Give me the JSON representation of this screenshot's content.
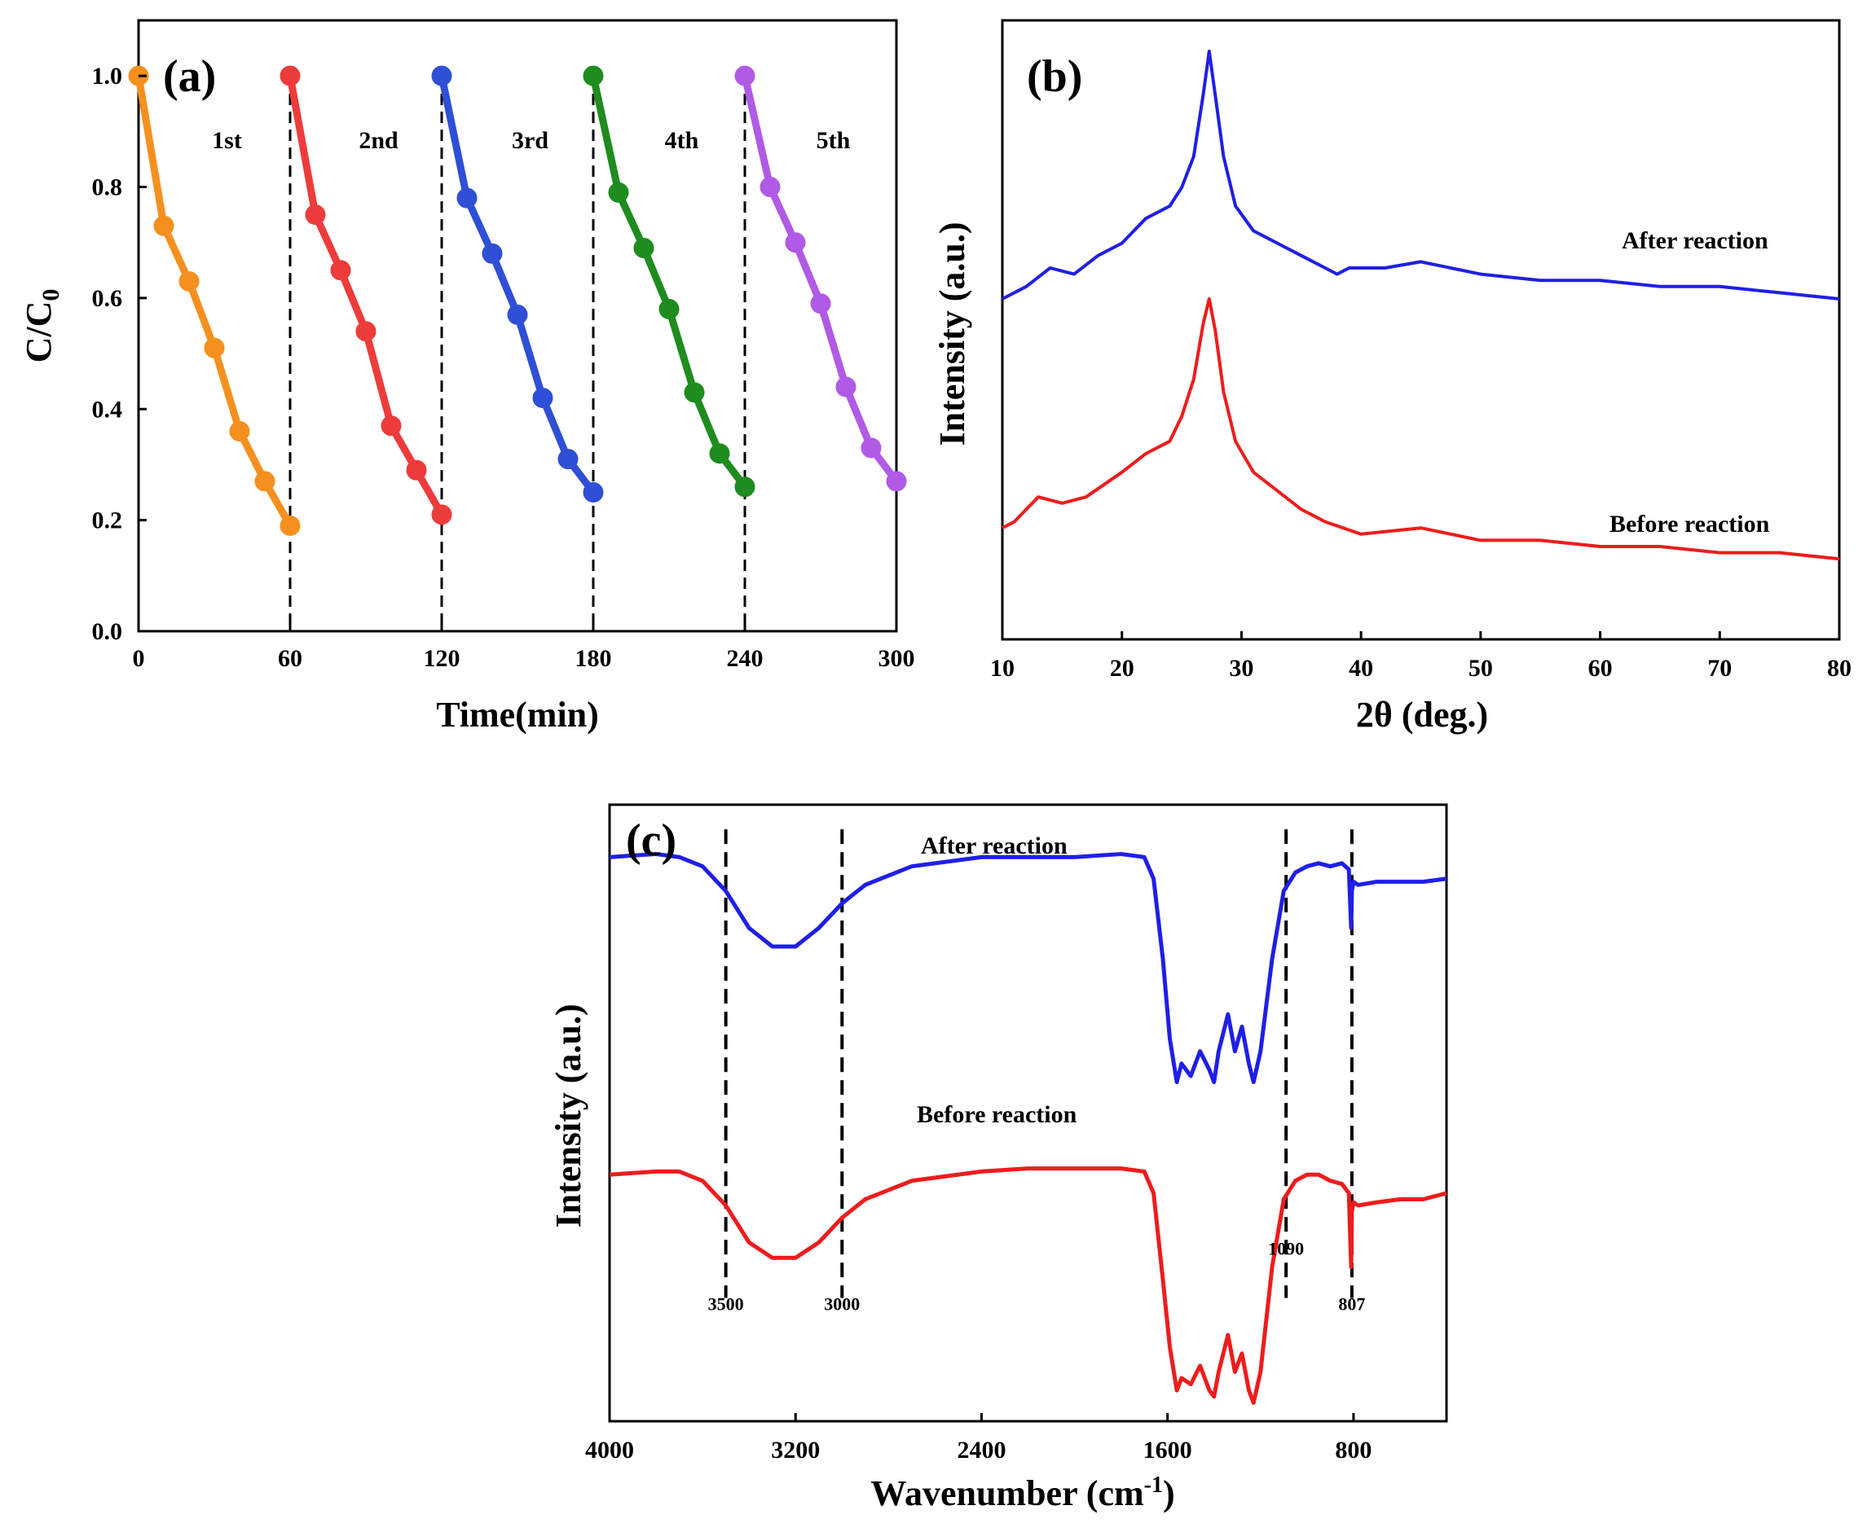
{
  "chart_data": [
    {
      "type": "line",
      "panel": "(a)",
      "xlabel": "Time(min)",
      "ylabel": "C/C",
      "ylabel_subscript": "0",
      "xlim": [
        0,
        300
      ],
      "ylim": [
        0.0,
        1.1
      ],
      "xticks": [
        "0",
        "60",
        "120",
        "180",
        "240",
        "300"
      ],
      "yticks": [
        "0.0",
        "0.2",
        "0.4",
        "0.6",
        "0.8",
        "1.0"
      ],
      "vlines": [
        60,
        120,
        180,
        240
      ],
      "series": [
        {
          "name": "1st",
          "color": "#f5901e",
          "x": [
            0,
            10,
            20,
            30,
            40,
            50,
            60
          ],
          "y": [
            1.0,
            0.73,
            0.63,
            0.51,
            0.36,
            0.27,
            0.19
          ]
        },
        {
          "name": "2nd",
          "color": "#ee3b3b",
          "x": [
            60,
            70,
            80,
            90,
            100,
            110,
            120
          ],
          "y": [
            1.0,
            0.75,
            0.65,
            0.54,
            0.37,
            0.29,
            0.21
          ]
        },
        {
          "name": "3rd",
          "color": "#2e4fd6",
          "x": [
            120,
            130,
            140,
            150,
            160,
            170,
            180
          ],
          "y": [
            1.0,
            0.78,
            0.68,
            0.57,
            0.42,
            0.31,
            0.25
          ]
        },
        {
          "name": "4th",
          "color": "#1e8c1e",
          "x": [
            180,
            190,
            200,
            210,
            220,
            230,
            240
          ],
          "y": [
            1.0,
            0.79,
            0.69,
            0.58,
            0.43,
            0.32,
            0.26
          ]
        },
        {
          "name": "5th",
          "color": "#b05ae6",
          "x": [
            240,
            250,
            260,
            270,
            280,
            290,
            300
          ],
          "y": [
            1.0,
            0.8,
            0.7,
            0.59,
            0.44,
            0.33,
            0.27
          ]
        }
      ]
    },
    {
      "type": "line",
      "panel": "(b)",
      "xlabel": "2θ (deg.)",
      "ylabel": "Intensity (a.u.)",
      "xlim": [
        10,
        80
      ],
      "ylim": [
        0,
        1
      ],
      "xticks": [
        "10",
        "20",
        "30",
        "40",
        "50",
        "60",
        "70",
        "80"
      ],
      "series": [
        {
          "name": "After reaction",
          "color": "#1f1fe6",
          "x": [
            10,
            12,
            14,
            16,
            18,
            20,
            22,
            24,
            25,
            26,
            26.8,
            27.3,
            27.8,
            28.5,
            29.5,
            31,
            33,
            35,
            37,
            38,
            39,
            42,
            45,
            50,
            55,
            60,
            65,
            70,
            75,
            80
          ],
          "y": [
            0.55,
            0.57,
            0.6,
            0.59,
            0.62,
            0.64,
            0.68,
            0.7,
            0.73,
            0.78,
            0.88,
            0.95,
            0.88,
            0.78,
            0.7,
            0.66,
            0.64,
            0.62,
            0.6,
            0.59,
            0.6,
            0.6,
            0.61,
            0.59,
            0.58,
            0.58,
            0.57,
            0.57,
            0.56,
            0.55
          ]
        },
        {
          "name": "Before reaction",
          "color": "#ee1c1c",
          "x": [
            10,
            11,
            12,
            13,
            15,
            17,
            20,
            22,
            24,
            25,
            26,
            26.8,
            27.3,
            27.8,
            28.5,
            29.5,
            31,
            33,
            35,
            37,
            40,
            45,
            50,
            55,
            60,
            65,
            70,
            75,
            80
          ],
          "y": [
            0.18,
            0.19,
            0.21,
            0.23,
            0.22,
            0.23,
            0.27,
            0.3,
            0.32,
            0.36,
            0.42,
            0.51,
            0.55,
            0.5,
            0.4,
            0.32,
            0.27,
            0.24,
            0.21,
            0.19,
            0.17,
            0.18,
            0.16,
            0.16,
            0.15,
            0.15,
            0.14,
            0.14,
            0.13
          ]
        }
      ],
      "annotations": [
        "After reaction",
        "Before reaction"
      ]
    },
    {
      "type": "line",
      "panel": "(c)",
      "xlabel": "Wavenumber (cm",
      "xlabel_superscript": "-1",
      "xlabel_suffix": ")",
      "ylabel": "Intensity (a.u.)",
      "xlim": [
        4000,
        400
      ],
      "ylim": [
        0,
        1
      ],
      "xticks": [
        "4000",
        "3200",
        "2400",
        "1600",
        "800"
      ],
      "vlines": [
        {
          "x": 3500,
          "label": "3500"
        },
        {
          "x": 3000,
          "label": "3000"
        },
        {
          "x": 1090,
          "label": "1090"
        },
        {
          "x": 807,
          "label": "807"
        }
      ],
      "series": [
        {
          "name": "After reaction",
          "color": "#1f1fe6",
          "x": [
            4000,
            3800,
            3700,
            3600,
            3500,
            3400,
            3300,
            3200,
            3100,
            3000,
            2900,
            2700,
            2400,
            2200,
            2000,
            1800,
            1700,
            1660,
            1620,
            1590,
            1560,
            1540,
            1500,
            1460,
            1420,
            1400,
            1380,
            1340,
            1310,
            1280,
            1250,
            1230,
            1200,
            1150,
            1100,
            1050,
            1000,
            950,
            900,
            850,
            820,
            810,
            807,
            800,
            780,
            700,
            600,
            500,
            400
          ],
          "y": [
            0.915,
            0.92,
            0.915,
            0.9,
            0.86,
            0.8,
            0.77,
            0.77,
            0.8,
            0.84,
            0.87,
            0.9,
            0.915,
            0.915,
            0.915,
            0.92,
            0.915,
            0.88,
            0.75,
            0.62,
            0.55,
            0.58,
            0.56,
            0.6,
            0.57,
            0.55,
            0.6,
            0.66,
            0.6,
            0.64,
            0.58,
            0.55,
            0.6,
            0.75,
            0.86,
            0.89,
            0.9,
            0.905,
            0.9,
            0.905,
            0.895,
            0.8,
            0.86,
            0.875,
            0.87,
            0.875,
            0.875,
            0.875,
            0.88
          ]
        },
        {
          "name": "Before reaction",
          "color": "#ee1c1c",
          "x": [
            4000,
            3800,
            3700,
            3600,
            3500,
            3400,
            3300,
            3200,
            3100,
            3000,
            2900,
            2700,
            2400,
            2200,
            2000,
            1800,
            1700,
            1660,
            1620,
            1590,
            1560,
            1540,
            1500,
            1460,
            1420,
            1400,
            1380,
            1340,
            1310,
            1280,
            1250,
            1230,
            1200,
            1150,
            1100,
            1050,
            1000,
            950,
            900,
            850,
            820,
            810,
            807,
            800,
            780,
            700,
            600,
            500,
            400
          ],
          "y": [
            0.4,
            0.405,
            0.405,
            0.39,
            0.35,
            0.29,
            0.265,
            0.265,
            0.29,
            0.33,
            0.36,
            0.39,
            0.405,
            0.41,
            0.41,
            0.41,
            0.405,
            0.37,
            0.23,
            0.12,
            0.05,
            0.07,
            0.06,
            0.09,
            0.05,
            0.04,
            0.08,
            0.14,
            0.08,
            0.11,
            0.05,
            0.03,
            0.08,
            0.25,
            0.36,
            0.39,
            0.4,
            0.4,
            0.39,
            0.385,
            0.37,
            0.25,
            0.34,
            0.355,
            0.35,
            0.355,
            0.36,
            0.36,
            0.37
          ]
        }
      ],
      "annotations": [
        "After reaction",
        "Before reaction"
      ]
    }
  ]
}
